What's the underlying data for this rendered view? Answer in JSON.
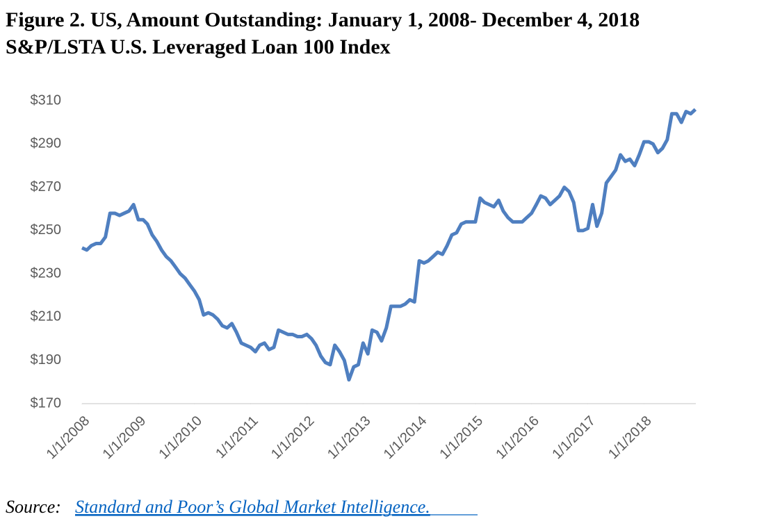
{
  "chart_data": {
    "type": "line",
    "title": "Figure 2.  US, Amount Outstanding: January 1, 2008- December 4, 2018",
    "subtitle": "S&P/LSTA U.S. Leveraged Loan 100 Index",
    "x": [
      "2008-01",
      "2008-02",
      "2008-03",
      "2008-04",
      "2008-05",
      "2008-06",
      "2008-07",
      "2008-08",
      "2008-09",
      "2008-10",
      "2008-11",
      "2008-12",
      "2009-01",
      "2009-02",
      "2009-03",
      "2009-04",
      "2009-05",
      "2009-06",
      "2009-07",
      "2009-08",
      "2009-09",
      "2009-10",
      "2009-11",
      "2009-12",
      "2010-01",
      "2010-02",
      "2010-03",
      "2010-04",
      "2010-05",
      "2010-06",
      "2010-07",
      "2010-08",
      "2010-09",
      "2010-10",
      "2010-11",
      "2010-12",
      "2011-01",
      "2011-02",
      "2011-03",
      "2011-04",
      "2011-05",
      "2011-06",
      "2011-07",
      "2011-08",
      "2011-09",
      "2011-10",
      "2011-11",
      "2011-12",
      "2012-01",
      "2012-02",
      "2012-03",
      "2012-04",
      "2012-05",
      "2012-06",
      "2012-07",
      "2012-08",
      "2012-09",
      "2012-10",
      "2012-11",
      "2012-12",
      "2013-01",
      "2013-02",
      "2013-03",
      "2013-04",
      "2013-05",
      "2013-06",
      "2013-07",
      "2013-08",
      "2013-09",
      "2013-10",
      "2013-11",
      "2013-12",
      "2014-01",
      "2014-02",
      "2014-03",
      "2014-04",
      "2014-05",
      "2014-06",
      "2014-07",
      "2014-08",
      "2014-09",
      "2014-10",
      "2014-11",
      "2014-12",
      "2015-01",
      "2015-02",
      "2015-03",
      "2015-04",
      "2015-05",
      "2015-06",
      "2015-07",
      "2015-08",
      "2015-09",
      "2015-10",
      "2015-11",
      "2015-12",
      "2016-01",
      "2016-02",
      "2016-03",
      "2016-04",
      "2016-05",
      "2016-06",
      "2016-07",
      "2016-08",
      "2016-09",
      "2016-10",
      "2016-11",
      "2016-12",
      "2017-01",
      "2017-02",
      "2017-03",
      "2017-04",
      "2017-05",
      "2017-06",
      "2017-07",
      "2017-08",
      "2017-09",
      "2017-10",
      "2017-11",
      "2017-12",
      "2018-01",
      "2018-02",
      "2018-03",
      "2018-04",
      "2018-05",
      "2018-06",
      "2018-07",
      "2018-08",
      "2018-09",
      "2018-10",
      "2018-11",
      "2018-12"
    ],
    "series": [
      {
        "color": "#4f7fc0",
        "values": [
          242,
          241,
          243,
          244,
          244,
          247,
          258,
          258,
          257,
          258,
          259,
          262,
          255,
          255,
          253,
          248,
          245,
          241,
          238,
          236,
          233,
          230,
          228,
          225,
          222,
          218,
          211,
          212,
          211,
          209,
          206,
          205,
          207,
          203,
          198,
          197,
          196,
          194,
          197,
          198,
          195,
          196,
          204,
          203,
          202,
          202,
          201,
          201,
          202,
          200,
          197,
          192,
          189,
          188,
          197,
          194,
          190,
          181,
          187,
          188,
          198,
          193,
          204,
          203,
          199,
          205,
          215,
          215,
          215,
          216,
          218,
          217,
          236,
          235,
          236,
          238,
          240,
          239,
          243,
          248,
          249,
          253,
          254,
          254,
          254,
          265,
          263,
          262,
          261,
          264,
          259,
          256,
          254,
          254,
          254,
          256,
          258,
          262,
          266,
          265,
          262,
          264,
          266,
          270,
          268,
          263,
          250,
          250,
          251,
          262,
          252,
          258,
          272,
          275,
          278,
          285,
          282,
          283,
          280,
          285,
          291,
          291,
          290,
          286,
          288,
          292,
          304,
          304,
          300,
          305,
          304,
          306
        ]
      }
    ],
    "xlim": [
      "2008-01-01",
      "2018-12-04"
    ],
    "xticks": [
      {
        "value": "2008-01-01",
        "label": "1/1/2008"
      },
      {
        "value": "2009-01-01",
        "label": "1/1/2009"
      },
      {
        "value": "2010-01-01",
        "label": "1/1/2010"
      },
      {
        "value": "2011-01-01",
        "label": "1/1/2011"
      },
      {
        "value": "2012-01-01",
        "label": "1/1/2012"
      },
      {
        "value": "2013-01-01",
        "label": "1/1/2013"
      },
      {
        "value": "2014-01-01",
        "label": "1/1/2014"
      },
      {
        "value": "2015-01-01",
        "label": "1/1/2015"
      },
      {
        "value": "2016-01-01",
        "label": "1/1/2016"
      },
      {
        "value": "2017-01-01",
        "label": "1/1/2017"
      },
      {
        "value": "2018-01-01",
        "label": "1/1/2018"
      }
    ],
    "ylim": [
      170,
      310
    ],
    "yticks": [
      {
        "value": 170,
        "label": "$170"
      },
      {
        "value": 190,
        "label": "$190"
      },
      {
        "value": 210,
        "label": "$210"
      },
      {
        "value": 230,
        "label": "$230"
      },
      {
        "value": 250,
        "label": "$250"
      },
      {
        "value": 270,
        "label": "$270"
      },
      {
        "value": 290,
        "label": "$290"
      },
      {
        "value": 310,
        "label": "$310"
      }
    ],
    "grid": false
  },
  "source": {
    "label": "Source:",
    "link": "Standard and Poor’s Global Market Intelligence."
  }
}
